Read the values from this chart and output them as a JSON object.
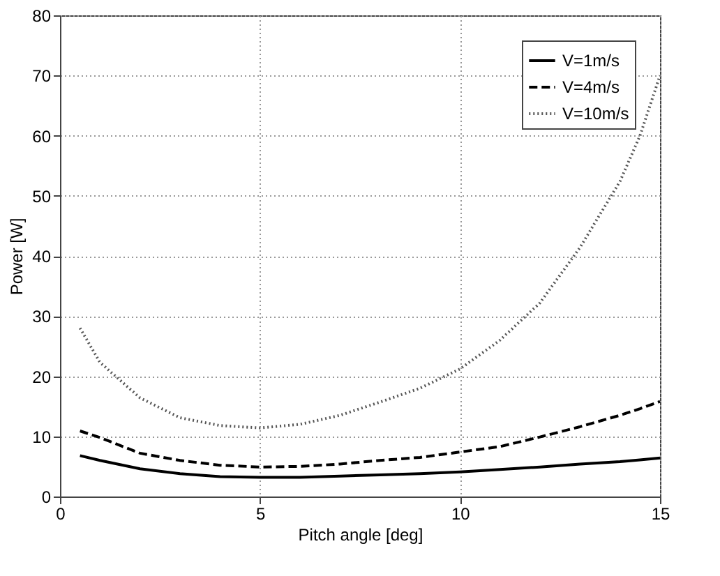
{
  "chart_data": {
    "type": "line",
    "xlabel": "Pitch angle [deg]",
    "ylabel": "Power [W]",
    "x": [
      0.5,
      1,
      2,
      3,
      4,
      5,
      6,
      7,
      8,
      9,
      10,
      11,
      12,
      13,
      14,
      14.5,
      15
    ],
    "series": [
      {
        "name": "V=1m/s",
        "color": "#000000",
        "line_style": "solid",
        "values": [
          6.8,
          6.0,
          4.6,
          3.8,
          3.3,
          3.2,
          3.2,
          3.4,
          3.6,
          3.8,
          4.1,
          4.5,
          4.9,
          5.4,
          5.8,
          6.1,
          6.4
        ]
      },
      {
        "name": "V=4m/s",
        "color": "#000000",
        "line_style": "dashed",
        "values": [
          10.9,
          9.8,
          7.2,
          6.0,
          5.2,
          4.9,
          5.0,
          5.4,
          6.0,
          6.5,
          7.4,
          8.3,
          9.9,
          11.6,
          13.5,
          14.6,
          15.8
        ]
      },
      {
        "name": "V=10m/s",
        "color": "#555555",
        "line_style": "dotted",
        "values": [
          28,
          22.3,
          16.4,
          13.1,
          11.8,
          11.4,
          12,
          13.5,
          15.7,
          18,
          21.2,
          26,
          32.2,
          41.4,
          52.4,
          60,
          70
        ]
      }
    ],
    "xlim": [
      0,
      15
    ],
    "xticks": [
      0,
      5,
      10,
      15
    ],
    "ylim": [
      0,
      80
    ],
    "yticks": [
      0,
      10,
      20,
      30,
      40,
      50,
      60,
      70,
      80
    ],
    "grid": true,
    "legend": "top right",
    "marker": "none"
  }
}
